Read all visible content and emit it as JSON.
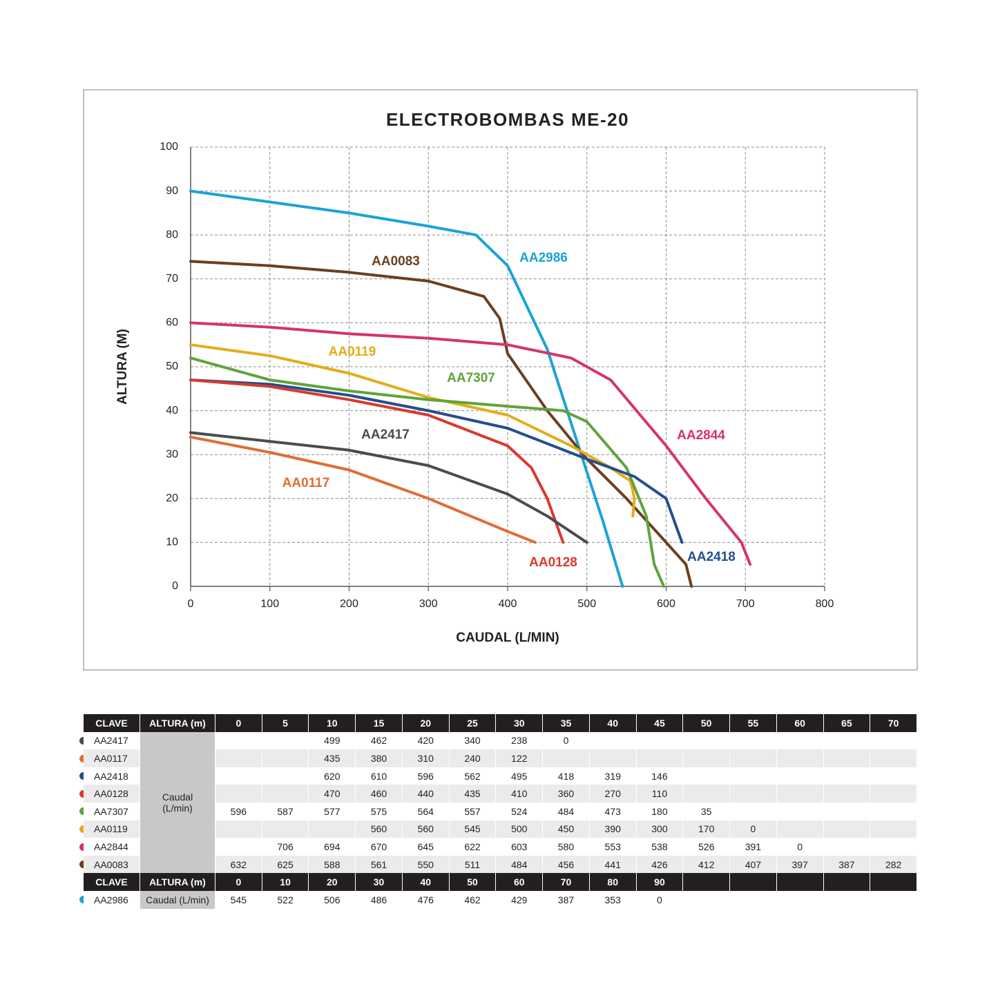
{
  "chart_data": {
    "type": "line",
    "title": "ELECTROBOMBAS ME-20",
    "xlabel": "CAUDAL (L/MIN)",
    "ylabel": "ALTURA (M)",
    "xlim": [
      0,
      800
    ],
    "ylim": [
      0,
      100
    ],
    "xticks": [
      0,
      100,
      200,
      300,
      400,
      500,
      600,
      700,
      800
    ],
    "yticks": [
      0,
      10,
      20,
      30,
      40,
      50,
      60,
      70,
      80,
      90,
      100
    ],
    "grid": true,
    "series": [
      {
        "name": "AA2986",
        "color": "#1ba3d8",
        "x": [
          0,
          100,
          200,
          300,
          360,
          400,
          450,
          500,
          520,
          545
        ],
        "values": [
          90,
          87.5,
          85,
          82,
          80,
          73,
          54,
          26,
          15,
          0
        ]
      },
      {
        "name": "AA0083",
        "color": "#6b3f22",
        "x": [
          0,
          100,
          200,
          300,
          370,
          390,
          400,
          450,
          500,
          550,
          600,
          625,
          632
        ],
        "values": [
          74,
          73,
          71.5,
          69.5,
          66,
          61,
          53,
          40,
          29,
          20,
          10,
          5,
          0
        ]
      },
      {
        "name": "AA2844",
        "color": "#d6336c",
        "x": [
          0,
          100,
          200,
          300,
          400,
          480,
          530,
          600,
          650,
          695,
          706
        ],
        "values": [
          60,
          59,
          57.5,
          56.5,
          55,
          52,
          47,
          32,
          20,
          10,
          5
        ]
      },
      {
        "name": "AA0119",
        "color": "#e4ac1a",
        "x": [
          0,
          100,
          200,
          300,
          400,
          480,
          530,
          555,
          560,
          558
        ],
        "values": [
          55,
          52.5,
          48.5,
          43,
          39,
          32,
          27,
          24,
          20,
          16
        ]
      },
      {
        "name": "AA7307",
        "color": "#5fa33a",
        "x": [
          0,
          100,
          200,
          300,
          400,
          470,
          500,
          550,
          575,
          585,
          597
        ],
        "values": [
          52,
          47,
          44.5,
          42.5,
          41,
          40,
          37.5,
          27,
          16,
          5,
          0
        ]
      },
      {
        "name": "AA2418",
        "color": "#234f8c",
        "x": [
          0,
          100,
          200,
          300,
          400,
          500,
          560,
          600,
          620
        ],
        "values": [
          47,
          46,
          43.5,
          40,
          36,
          29,
          25,
          20,
          10
        ]
      },
      {
        "name": "AA0128",
        "color": "#d9392e",
        "x": [
          0,
          100,
          200,
          300,
          400,
          430,
          450,
          470
        ],
        "values": [
          47,
          45.5,
          42.5,
          39,
          32,
          27,
          20,
          10
        ]
      },
      {
        "name": "AA2417",
        "color": "#474d4f",
        "x": [
          0,
          100,
          200,
          300,
          400,
          450,
          500
        ],
        "values": [
          35,
          33,
          31,
          27.5,
          21,
          16,
          10
        ]
      },
      {
        "name": "AA0117",
        "color": "#e06d33",
        "x": [
          0,
          100,
          200,
          300,
          400,
          435
        ],
        "values": [
          34,
          30.5,
          26.5,
          20,
          12.5,
          10
        ]
      }
    ]
  },
  "table": {
    "header": {
      "clave": "CLAVE",
      "altura": "ALTURA (m)",
      "heads": [
        0,
        5,
        10,
        15,
        20,
        25,
        30,
        35,
        40,
        45,
        50,
        55,
        60,
        65,
        70
      ]
    },
    "caudal_label": "Caudal (L/min)",
    "rows": [
      {
        "clave": "AA2417",
        "caudal": [
          null,
          null,
          499,
          462,
          420,
          340,
          238,
          0,
          null,
          null,
          null,
          null,
          null,
          null,
          null
        ]
      },
      {
        "clave": "AA0117",
        "caudal": [
          null,
          null,
          435,
          380,
          310,
          240,
          122,
          null,
          null,
          null,
          null,
          null,
          null,
          null,
          null
        ]
      },
      {
        "clave": "AA2418",
        "caudal": [
          null,
          null,
          620,
          610,
          596,
          562,
          495,
          418,
          319,
          146,
          null,
          null,
          null,
          null,
          null
        ]
      },
      {
        "clave": "AA0128",
        "caudal": [
          null,
          null,
          470,
          460,
          440,
          435,
          410,
          360,
          270,
          110,
          null,
          null,
          null,
          null,
          null
        ]
      },
      {
        "clave": "AA7307",
        "caudal": [
          596,
          587,
          577,
          575,
          564,
          557,
          524,
          484,
          473,
          180,
          35,
          null,
          null,
          null,
          null
        ]
      },
      {
        "clave": "AA0119",
        "caudal": [
          null,
          null,
          null,
          560,
          560,
          545,
          500,
          450,
          390,
          300,
          170,
          0,
          null,
          null,
          null
        ]
      },
      {
        "clave": "AA2844",
        "caudal": [
          null,
          706,
          694,
          670,
          645,
          622,
          603,
          580,
          553,
          538,
          526,
          391,
          0,
          null,
          null
        ]
      },
      {
        "clave": "AA0083",
        "caudal": [
          632,
          625,
          588,
          561,
          550,
          511,
          484,
          456,
          441,
          426,
          412,
          407,
          397,
          387,
          282
        ]
      }
    ],
    "header2": {
      "clave": "CLAVE",
      "altura": "ALTURA (m)",
      "heads": [
        0,
        10,
        20,
        30,
        40,
        50,
        60,
        70,
        80,
        90
      ]
    },
    "row2": {
      "clave": "AA2986",
      "caudal_label": "Caudal (L/min)",
      "caudal": [
        545,
        522,
        506,
        486,
        476,
        462,
        429,
        387,
        353,
        0
      ]
    }
  }
}
